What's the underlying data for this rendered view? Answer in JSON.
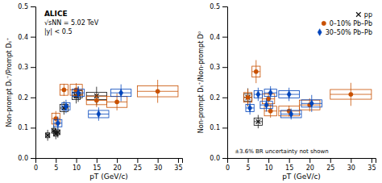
{
  "chart_data": [
    {
      "type": "scatter",
      "xlabel": "pT (GeV/c)",
      "ylabel": "Non-prompt Dₛ⁺/Prompt Dₛ⁺",
      "xlim": [
        0,
        36
      ],
      "ylim": [
        0,
        0.5
      ],
      "xticks": [
        0,
        5,
        10,
        15,
        20,
        25,
        30,
        35
      ],
      "yticks": [
        {
          "value": 0,
          "label": "0.0"
        },
        0.1,
        0.2,
        0.3,
        0.4,
        0.5
      ],
      "grid": false,
      "annotations": [
        "ALICE",
        "√sNN = 5.02 TeV",
        "|y| < 0.5"
      ],
      "series": [
        {
          "color": "#111111",
          "marker": "x",
          "x": [
            3.0,
            4.5,
            5.0,
            5.5,
            7.0,
            10.0,
            10.5,
            15.0
          ],
          "values": [
            0.075,
            0.09,
            0.08,
            0.085,
            0.165,
            0.205,
            0.21,
            0.205
          ],
          "yerr": [
            0.018,
            0.018,
            0.018,
            0.018,
            0.022,
            0.025,
            0.025,
            0.03
          ],
          "xerr": [
            0.5,
            0.5,
            0.5,
            0.5,
            1.0,
            1.0,
            1.0,
            2.5
          ],
          "syst_w": [
            0.5,
            0.5,
            0.5,
            0.5,
            1.0,
            1.0,
            1.0,
            2.5
          ],
          "syst_h": [
            0.008,
            0.008,
            0.008,
            0.008,
            0.012,
            0.012,
            0.012,
            0.012
          ]
        },
        {
          "color": "#c85000",
          "marker": "circle",
          "x": [
            5.0,
            7.0,
            10.0,
            15.0,
            20.0,
            30.0
          ],
          "values": [
            0.13,
            0.225,
            0.225,
            0.19,
            0.185,
            0.22
          ],
          "yerr": [
            0.025,
            0.02,
            0.022,
            0.022,
            0.028,
            0.038
          ],
          "xerr": [
            1.0,
            1.0,
            1.5,
            2.5,
            2.5,
            5.0
          ],
          "syst_w": [
            1.0,
            1.0,
            1.5,
            2.5,
            2.5,
            5.0
          ],
          "syst_h": [
            0.018,
            0.018,
            0.018,
            0.014,
            0.018,
            0.018
          ]
        },
        {
          "color": "#0044bb",
          "marker": "diamond",
          "x": [
            5.5,
            7.5,
            10.5,
            15.5,
            21.0
          ],
          "values": [
            0.115,
            0.17,
            0.215,
            0.145,
            0.215
          ],
          "yerr": [
            0.022,
            0.022,
            0.022,
            0.022,
            0.028
          ],
          "xerr": [
            1.0,
            1.0,
            1.5,
            2.5,
            2.5
          ],
          "syst_w": [
            1.0,
            1.0,
            1.5,
            2.5,
            2.5
          ],
          "syst_h": [
            0.012,
            0.012,
            0.012,
            0.012,
            0.012
          ]
        }
      ]
    },
    {
      "type": "scatter",
      "xlabel": "pT (GeV/c)",
      "ylabel": "Non-prompt Dₛ⁺/Non-prompt D⁰",
      "xlim": [
        0,
        36
      ],
      "ylim": [
        0,
        0.5
      ],
      "xticks": [
        0,
        5,
        10,
        15,
        20,
        25,
        30,
        35
      ],
      "yticks": [
        {
          "value": 0,
          "label": "0.0"
        },
        0.1,
        0.2,
        0.3,
        0.4,
        0.5
      ],
      "grid": false,
      "legend": "upper right",
      "annotations": [
        "±3.6% BR uncertainty not shown"
      ],
      "series": [
        {
          "name": "pp",
          "color": "#111111",
          "marker": "x",
          "x": [
            5.0,
            7.5
          ],
          "values": [
            0.2,
            0.12
          ],
          "yerr": [
            0.03,
            0.022
          ],
          "xerr": [
            1.0,
            1.0
          ],
          "syst_w": [
            1.0,
            1.0
          ],
          "syst_h": [
            0.012,
            0.012
          ]
        },
        {
          "name": "0–10% Pb–Pb",
          "color": "#c85000",
          "marker": "circle",
          "x": [
            5.0,
            7.0,
            10.0,
            10.5,
            15.0,
            20.0,
            30.0
          ],
          "values": [
            0.2,
            0.285,
            0.195,
            0.155,
            0.155,
            0.175,
            0.21
          ],
          "yerr": [
            0.028,
            0.038,
            0.022,
            0.022,
            0.018,
            0.022,
            0.038
          ],
          "xerr": [
            1.0,
            1.0,
            1.5,
            1.5,
            2.5,
            2.5,
            5.0
          ],
          "syst_w": [
            1.0,
            1.0,
            1.5,
            1.5,
            2.5,
            2.5,
            5.0
          ],
          "syst_h": [
            0.016,
            0.018,
            0.016,
            0.016,
            0.016,
            0.016,
            0.016
          ]
        },
        {
          "name": "30–50% Pb–Pb",
          "color": "#0044bb",
          "marker": "diamond",
          "x": [
            5.5,
            7.5,
            9.5,
            10.5,
            15.0,
            15.5,
            20.5
          ],
          "values": [
            0.165,
            0.21,
            0.175,
            0.215,
            0.21,
            0.145,
            0.18
          ],
          "yerr": [
            0.022,
            0.022,
            0.022,
            0.022,
            0.022,
            0.018,
            0.028
          ],
          "xerr": [
            1.0,
            1.0,
            1.5,
            1.5,
            2.5,
            2.5,
            2.5
          ],
          "syst_w": [
            1.0,
            1.0,
            1.5,
            1.5,
            2.5,
            2.5,
            2.5
          ],
          "syst_h": [
            0.012,
            0.012,
            0.012,
            0.012,
            0.012,
            0.012,
            0.012
          ]
        }
      ]
    }
  ]
}
